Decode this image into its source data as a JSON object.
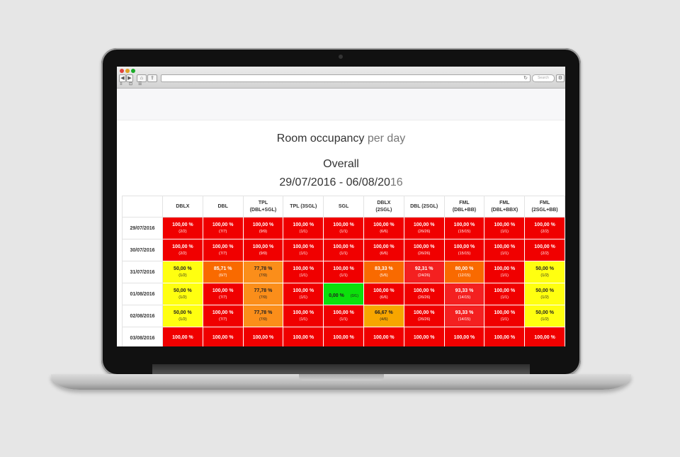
{
  "browser": {
    "reload_icon": "↻",
    "search_placeholder": "Search",
    "nav_back": "◀",
    "nav_forward": "▶",
    "home_icon": "⌂",
    "share_icon": "⇪",
    "settings_icon": "⚙",
    "bookmark_icons": [
      "≡",
      "⊡",
      "☰"
    ]
  },
  "page": {
    "title_main": "Room occupancy",
    "title_suffix": "per day",
    "subtitle": "Overall",
    "date_range_start": "29/07/2016 - 06/08/20",
    "date_range_end": "16"
  },
  "table": {
    "columns": [
      {
        "line1": "DBLX",
        "line2": ""
      },
      {
        "line1": "DBL",
        "line2": ""
      },
      {
        "line1": "TPL",
        "line2": "(DBL+SGL)"
      },
      {
        "line1": "TPL (3SGL)",
        "line2": ""
      },
      {
        "line1": "SGL",
        "line2": ""
      },
      {
        "line1": "DBLX",
        "line2": "(2SGL)"
      },
      {
        "line1": "DBL (2SGL)",
        "line2": ""
      },
      {
        "line1": "FML",
        "line2": "(DBL+BB)"
      },
      {
        "line1": "FML",
        "line2": "(DBL+BBX)"
      },
      {
        "line1": "FML",
        "line2": "(2SGL+BB)"
      }
    ],
    "rows": [
      {
        "date": "29/07/2016",
        "cells": [
          {
            "pct": "100,00 %",
            "frac": "(2/2)"
          },
          {
            "pct": "100,00 %",
            "frac": "(7/7)"
          },
          {
            "pct": "100,00 %",
            "frac": "(9/9)"
          },
          {
            "pct": "100,00 %",
            "frac": "(1/1)"
          },
          {
            "pct": "100,00 %",
            "frac": "(1/1)"
          },
          {
            "pct": "100,00 %",
            "frac": "(6/6)"
          },
          {
            "pct": "100,00 %",
            "frac": "(26/26)"
          },
          {
            "pct": "100,00 %",
            "frac": "(15/15)"
          },
          {
            "pct": "100,00 %",
            "frac": "(1/1)"
          },
          {
            "pct": "100,00 %",
            "frac": "(2/2)"
          }
        ]
      },
      {
        "date": "30/07/2016",
        "cells": [
          {
            "pct": "100,00 %",
            "frac": "(2/2)"
          },
          {
            "pct": "100,00 %",
            "frac": "(7/7)"
          },
          {
            "pct": "100,00 %",
            "frac": "(9/9)"
          },
          {
            "pct": "100,00 %",
            "frac": "(1/1)"
          },
          {
            "pct": "100,00 %",
            "frac": "(1/1)"
          },
          {
            "pct": "100,00 %",
            "frac": "(6/6)"
          },
          {
            "pct": "100,00 %",
            "frac": "(26/26)"
          },
          {
            "pct": "100,00 %",
            "frac": "(15/15)"
          },
          {
            "pct": "100,00 %",
            "frac": "(1/1)"
          },
          {
            "pct": "100,00 %",
            "frac": "(2/2)"
          }
        ]
      },
      {
        "date": "31/07/2016",
        "cells": [
          {
            "pct": "50,00 %",
            "frac": "(1/2)"
          },
          {
            "pct": "85,71 %",
            "frac": "(6/7)"
          },
          {
            "pct": "77,78 %",
            "frac": "(7/9)"
          },
          {
            "pct": "100,00 %",
            "frac": "(1/1)"
          },
          {
            "pct": "100,00 %",
            "frac": "(1/1)"
          },
          {
            "pct": "83,33 %",
            "frac": "(5/6)"
          },
          {
            "pct": "92,31 %",
            "frac": "(24/26)"
          },
          {
            "pct": "80,00 %",
            "frac": "(12/15)"
          },
          {
            "pct": "100,00 %",
            "frac": "(1/1)"
          },
          {
            "pct": "50,00 %",
            "frac": "(1/2)"
          }
        ]
      },
      {
        "date": "01/08/2016",
        "cells": [
          {
            "pct": "50,00 %",
            "frac": "(1/2)"
          },
          {
            "pct": "100,00 %",
            "frac": "(7/7)"
          },
          {
            "pct": "77,78 %",
            "frac": "(7/9)"
          },
          {
            "pct": "100,00 %",
            "frac": "(1/1)"
          },
          {
            "pct": "0,00 %",
            "frac": "(0/1)"
          },
          {
            "pct": "100,00 %",
            "frac": "(6/6)"
          },
          {
            "pct": "100,00 %",
            "frac": "(26/26)"
          },
          {
            "pct": "93,33 %",
            "frac": "(14/15)"
          },
          {
            "pct": "100,00 %",
            "frac": "(1/1)"
          },
          {
            "pct": "50,00 %",
            "frac": "(1/2)"
          }
        ]
      },
      {
        "date": "02/08/2016",
        "cells": [
          {
            "pct": "50,00 %",
            "frac": "(1/2)"
          },
          {
            "pct": "100,00 %",
            "frac": "(7/7)"
          },
          {
            "pct": "77,78 %",
            "frac": "(7/9)"
          },
          {
            "pct": "100,00 %",
            "frac": "(1/1)"
          },
          {
            "pct": "100,00 %",
            "frac": "(1/1)"
          },
          {
            "pct": "66,67 %",
            "frac": "(4/6)"
          },
          {
            "pct": "100,00 %",
            "frac": "(26/26)"
          },
          {
            "pct": "93,33 %",
            "frac": "(14/15)"
          },
          {
            "pct": "100,00 %",
            "frac": "(1/1)"
          },
          {
            "pct": "50,00 %",
            "frac": "(1/2)"
          }
        ]
      },
      {
        "date": "03/08/2016",
        "cells": [
          {
            "pct": "100,00 %",
            "frac": ""
          },
          {
            "pct": "100,00 %",
            "frac": ""
          },
          {
            "pct": "100,00 %",
            "frac": ""
          },
          {
            "pct": "100,00 %",
            "frac": ""
          },
          {
            "pct": "100,00 %",
            "frac": ""
          },
          {
            "pct": "100,00 %",
            "frac": ""
          },
          {
            "pct": "100,00 %",
            "frac": ""
          },
          {
            "pct": "100,00 %",
            "frac": ""
          },
          {
            "pct": "100,00 %",
            "frac": ""
          },
          {
            "pct": "100,00 %",
            "frac": ""
          }
        ]
      }
    ]
  },
  "colors": {
    "full": "#f00000",
    "high": "#f96a00",
    "mid": "#f7a600",
    "half": "#ffff10",
    "empty": "#0ce00c"
  }
}
